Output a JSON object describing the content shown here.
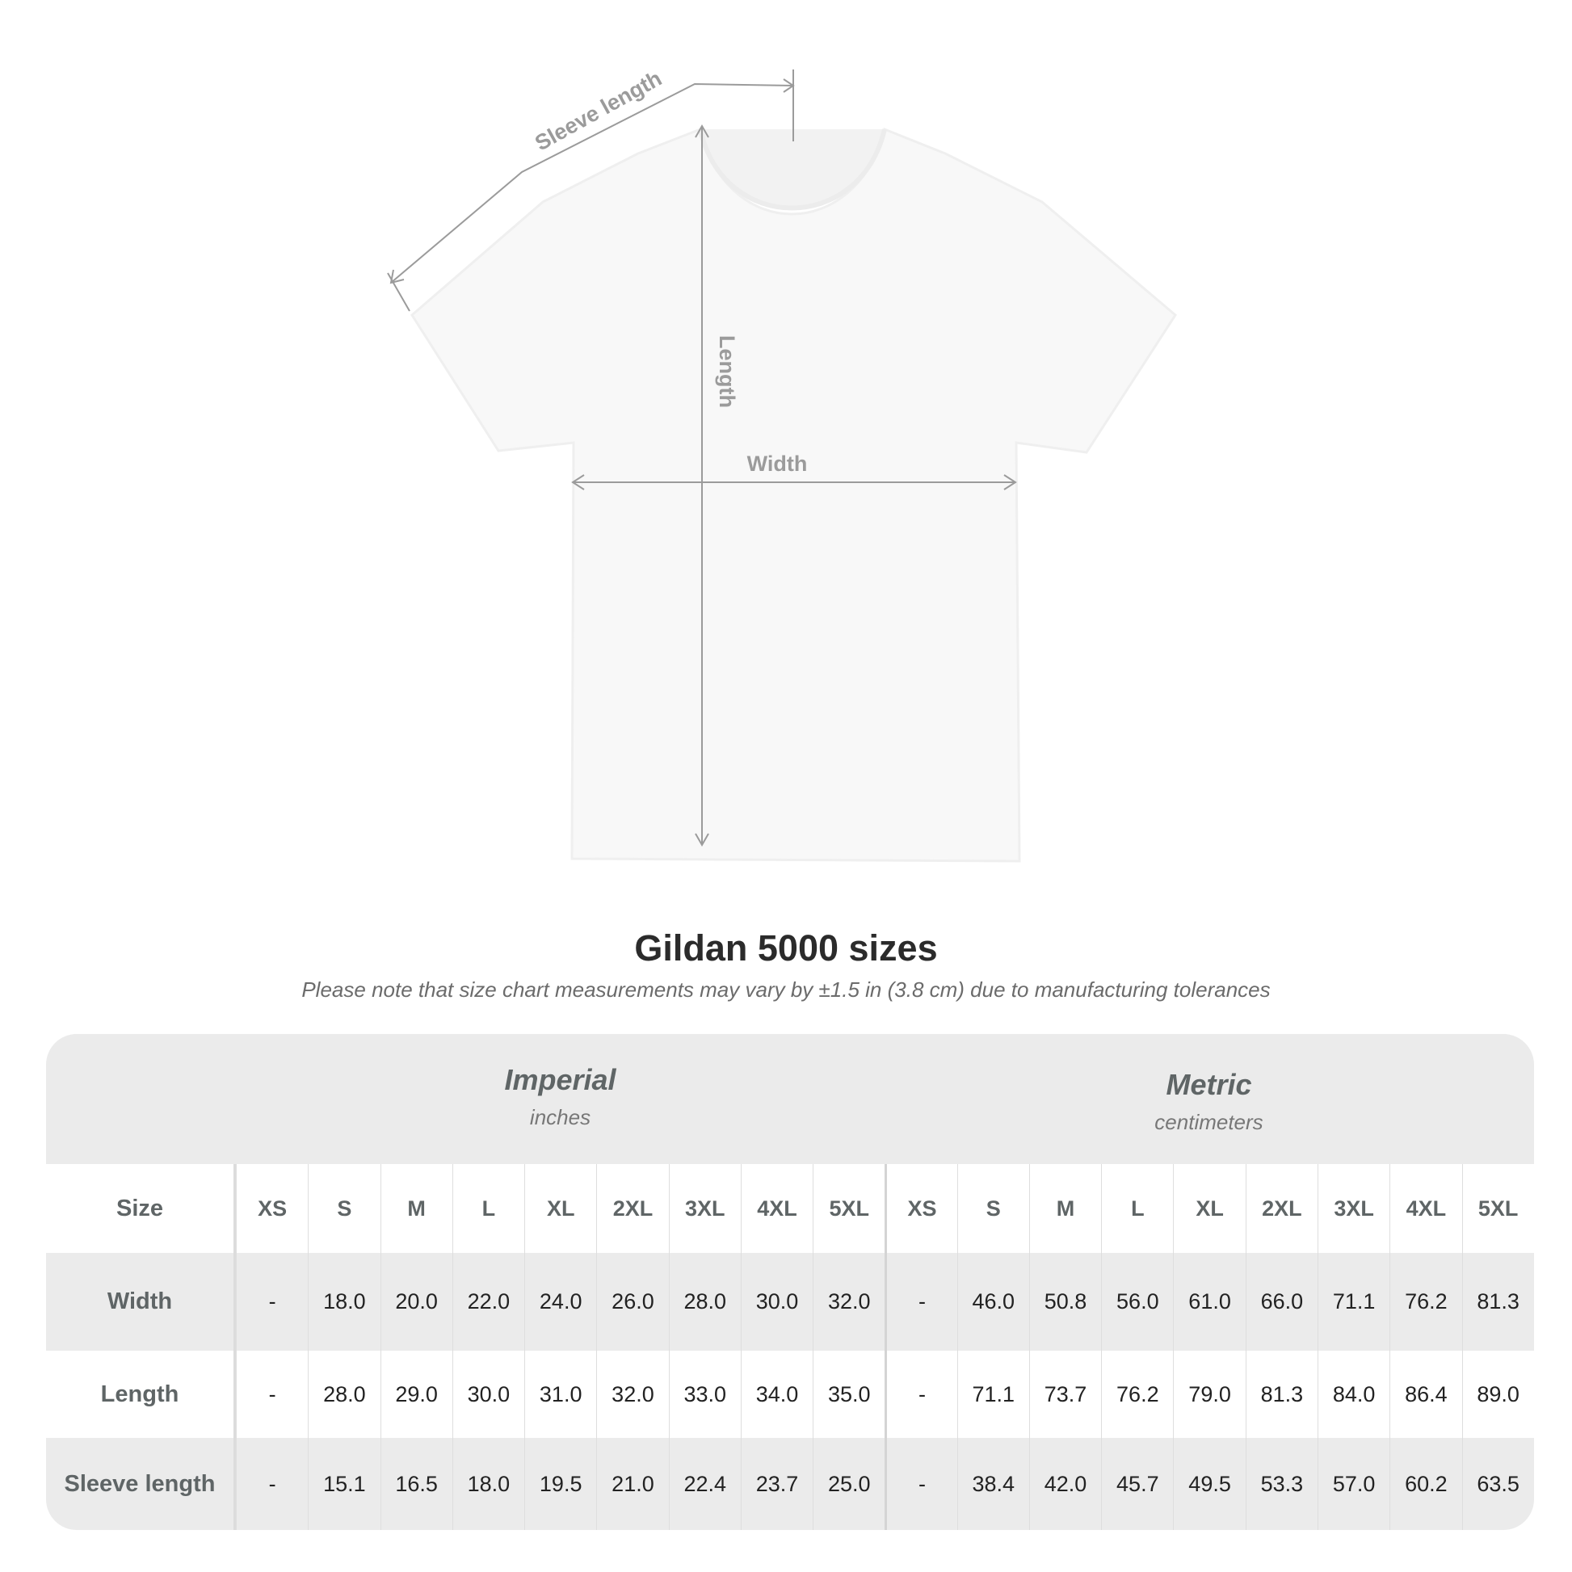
{
  "diagram": {
    "labels": {
      "sleeve": "Sleeve length",
      "length": "Length",
      "width": "Width"
    },
    "line_color": "#9b9b9b"
  },
  "title": "Gildan 5000 sizes",
  "note": "Please note that size chart measurements may vary by ±1.5 in (3.8 cm) due to manufacturing tolerances",
  "table": {
    "groups": [
      {
        "title": "Imperial",
        "unit": "inches"
      },
      {
        "title": "Metric",
        "unit": "centimeters"
      }
    ],
    "size_label": "Size",
    "sizes": [
      "XS",
      "S",
      "M",
      "L",
      "XL",
      "2XL",
      "3XL",
      "4XL",
      "5XL"
    ],
    "rows": [
      {
        "label": "Width",
        "imperial": [
          "-",
          "18.0",
          "20.0",
          "22.0",
          "24.0",
          "26.0",
          "28.0",
          "30.0",
          "32.0"
        ],
        "metric": [
          "-",
          "46.0",
          "50.8",
          "56.0",
          "61.0",
          "66.0",
          "71.1",
          "76.2",
          "81.3"
        ]
      },
      {
        "label": "Length",
        "imperial": [
          "-",
          "28.0",
          "29.0",
          "30.0",
          "31.0",
          "32.0",
          "33.0",
          "34.0",
          "35.0"
        ],
        "metric": [
          "-",
          "71.1",
          "73.7",
          "76.2",
          "79.0",
          "81.3",
          "84.0",
          "86.4",
          "89.0"
        ]
      },
      {
        "label": "Sleeve length",
        "imperial": [
          "-",
          "15.1",
          "16.5",
          "18.0",
          "19.5",
          "21.0",
          "22.4",
          "23.7",
          "25.0"
        ],
        "metric": [
          "-",
          "38.4",
          "42.0",
          "45.7",
          "49.5",
          "53.3",
          "57.0",
          "60.2",
          "63.5"
        ]
      }
    ],
    "colors": {
      "band": "#ebebeb",
      "label_text": "#5f6566",
      "value_text": "#222222"
    }
  }
}
